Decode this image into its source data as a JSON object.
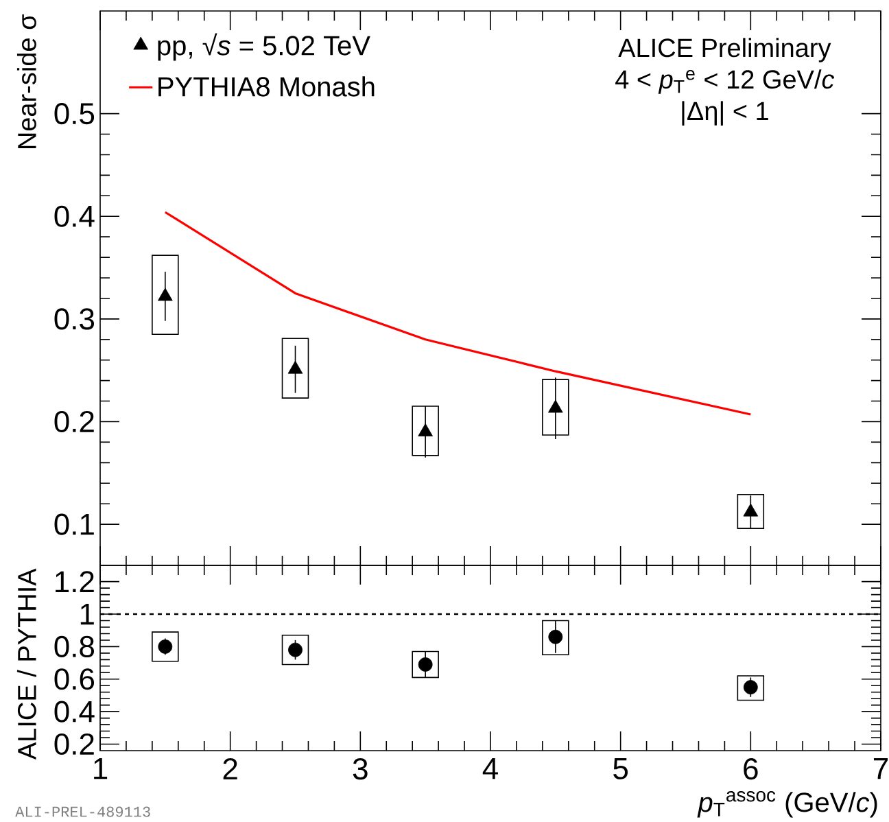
{
  "chart_data": [
    {
      "type": "scatter",
      "ylabel": "Near-side σ",
      "xlim": [
        1,
        7
      ],
      "ylim": [
        0.06,
        0.6
      ],
      "xticks": [
        1,
        2,
        3,
        4,
        5,
        6,
        7
      ],
      "yticks": [
        0.1,
        0.2,
        0.3,
        0.4,
        0.5
      ],
      "tick_labels": "y",
      "legend": "top left",
      "annotations": [
        "ALICE Preliminary",
        "4 < *p*$_{T}$$^{e}$ < 12 GeV/*c*",
        "|Δη| < 1"
      ],
      "series": [
        {
          "type": "bar",
          "color": "#000000",
          "x": [
            1.5,
            2.5,
            3.5,
            4.5,
            6
          ],
          "base": [
            0.285,
            0.223,
            0.167,
            0.187,
            0.096
          ],
          "values": [
            0.077,
            0.058,
            0.048,
            0.054,
            0.033
          ]
        },
        {
          "name": "pp, √*s* = 5.02 TeV",
          "color": "#000000",
          "marker": "triangle",
          "x": [
            1.5,
            2.5,
            3.5,
            4.5,
            6
          ],
          "values": [
            0.322,
            0.251,
            0.19,
            0.213,
            0.112
          ],
          "errors": [
            0.024,
            0.023,
            0.025,
            0.03,
            0.016
          ]
        },
        {
          "type": "line",
          "name": "PYTHIA8 Monash",
          "color": "#ff0000",
          "x": [
            1.5,
            2.5,
            3.5,
            4.5,
            6
          ],
          "values": [
            0.404,
            0.325,
            0.28,
            0.249,
            0.207
          ]
        }
      ]
    },
    {
      "type": "scatter",
      "ylabel": "ALICE / PYTHIA",
      "xlabel": "*p*$_{T}$$^{assoc}$ (GeV/*c*)",
      "xlim": [
        1,
        7
      ],
      "ylim": [
        0.16,
        1.3
      ],
      "xticks": [
        1,
        2,
        3,
        4,
        5,
        6,
        7
      ],
      "yticks": [
        0.2,
        0.4,
        0.6,
        0.8,
        1,
        1.2
      ],
      "annotations": [
        "ALI-PREL-489113"
      ],
      "ref_lines": [
        {
          "axis": "y",
          "value": 1,
          "line_style": "dashed",
          "color": "#000000"
        }
      ],
      "series": [
        {
          "type": "bar",
          "color": "#000000",
          "x": [
            1.5,
            2.5,
            3.5,
            4.5,
            6
          ],
          "base": [
            0.71,
            0.69,
            0.61,
            0.75,
            0.47
          ],
          "values": [
            0.18,
            0.18,
            0.16,
            0.21,
            0.15
          ]
        },
        {
          "color": "#000000",
          "marker": "circle",
          "x": [
            1.5,
            2.5,
            3.5,
            4.5,
            6
          ],
          "values": [
            0.8,
            0.78,
            0.69,
            0.86,
            0.55
          ],
          "errors": [
            0.05,
            0.06,
            0.08,
            0.1,
            0.06
          ]
        }
      ]
    }
  ]
}
